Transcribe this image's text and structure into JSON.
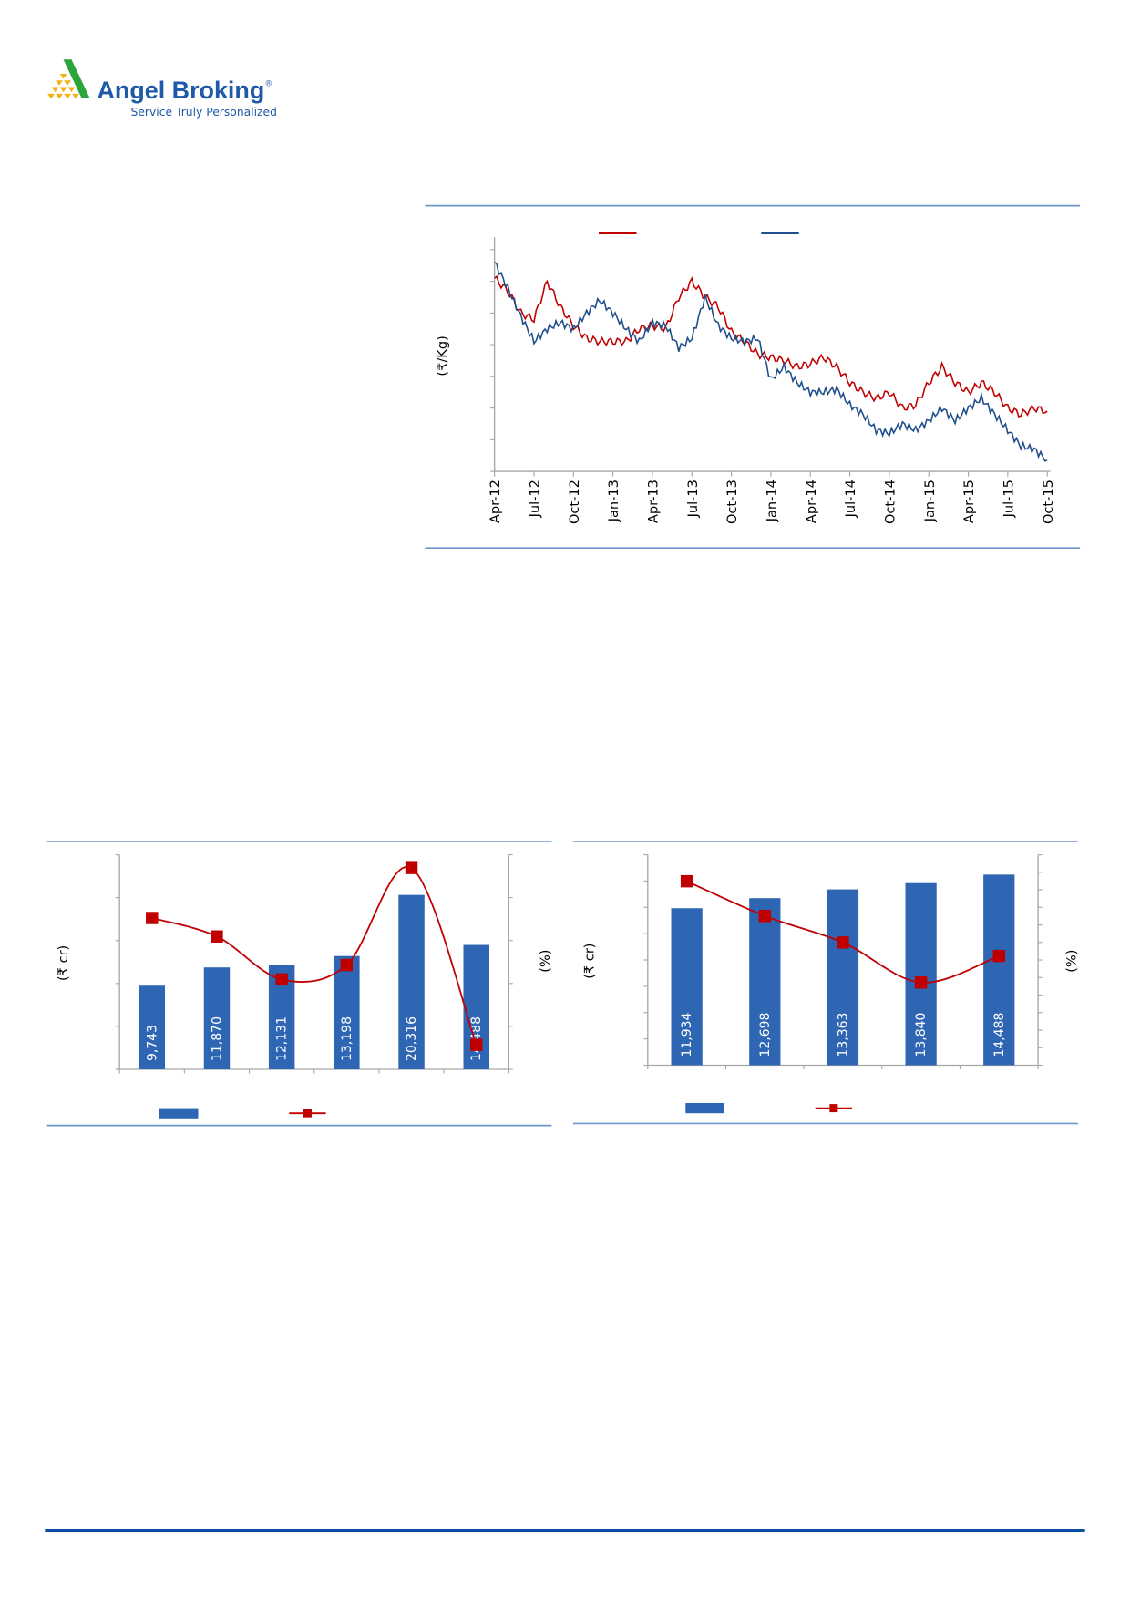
{
  "logo": {
    "name": "Angel Broking",
    "registered": "®",
    "tagline": "Service Truly Personalized",
    "colors": {
      "text": "#1e5aa8",
      "triangle": "#2aa53b",
      "dots": "#f2b21b"
    }
  },
  "colors": {
    "rule": "#6f97cc",
    "footer_rule": "#0a4da2",
    "bar": "#2f66b3",
    "line_red": "#c00000",
    "line_blue": "#1f4e8c"
  },
  "chart_data": [
    {
      "type": "line",
      "ylabel": "(₹/Kg)",
      "x_tick_labels": [
        "Apr-12",
        "Jul-12",
        "Oct-12",
        "Jan-13",
        "Apr-13",
        "Jul-13",
        "Oct-13",
        "Jan-14",
        "Apr-14",
        "Jul-14",
        "Oct-14",
        "Jan-15",
        "Apr-15",
        "Jul-15",
        "Oct-15"
      ],
      "x_range": [
        "Apr-12",
        "Oct-15"
      ],
      "y_tick_count": 8,
      "y_tick_labels_shown": false,
      "legend": "top",
      "grid": false,
      "series": [
        {
          "color": "#c00000",
          "values": [
            6.1,
            5.7,
            5.0,
            4.8,
            6.0,
            5.2,
            4.6,
            4.2,
            4.1,
            4.1,
            4.1,
            4.5,
            4.6,
            4.5,
            5.5,
            6.0,
            5.5,
            5.2,
            4.4,
            4.1,
            3.7,
            3.6,
            3.5,
            3.3,
            3.4,
            3.6,
            3.3,
            2.8,
            2.5,
            2.3,
            2.5,
            2.0,
            2.1,
            2.8,
            3.3,
            2.8,
            2.5,
            2.8,
            2.5,
            2.0,
            1.8,
            2.0,
            1.9
          ]
        },
        {
          "color": "#1f4e8c",
          "values": [
            6.6,
            5.8,
            4.9,
            4.1,
            4.5,
            4.7,
            4.5,
            5.0,
            5.4,
            5.0,
            4.5,
            4.1,
            4.7,
            4.6,
            3.9,
            4.2,
            5.5,
            4.6,
            4.2,
            4.1,
            4.2,
            2.9,
            3.3,
            2.8,
            2.5,
            2.5,
            2.6,
            2.1,
            1.8,
            1.3,
            1.2,
            1.5,
            1.3,
            1.6,
            2.0,
            1.6,
            2.0,
            2.3,
            1.8,
            1.3,
            0.8,
            0.7,
            0.35
          ]
        }
      ]
    },
    {
      "type": "bar",
      "ylabel": "(₹ cr)",
      "y2label": "(%)",
      "ylim": [
        0,
        25000
      ],
      "y_tick_labels_shown": false,
      "values": [
        9743,
        11870,
        12131,
        13198,
        20316,
        14488
      ],
      "data_labels": [
        "9,743",
        "11,870",
        "12,131",
        "13,198",
        "20,316",
        "14,488"
      ],
      "line_levels_fraction_of_right_axis": [
        0.705,
        0.619,
        0.419,
        0.486,
        0.938,
        0.114
      ],
      "legend": "bottom"
    },
    {
      "type": "bar",
      "ylabel": "(₹ cr)",
      "y2label": "(%)",
      "ylim": [
        0,
        16000
      ],
      "y_tick_labels_shown": false,
      "values": [
        11934,
        12698,
        13363,
        13840,
        14488
      ],
      "data_labels": [
        "11,934",
        "12,698",
        "13,363",
        "13,840",
        "14,488"
      ],
      "line_levels_fraction_of_right_axis": [
        0.874,
        0.709,
        0.583,
        0.393,
        0.519
      ],
      "legend": "bottom"
    }
  ]
}
